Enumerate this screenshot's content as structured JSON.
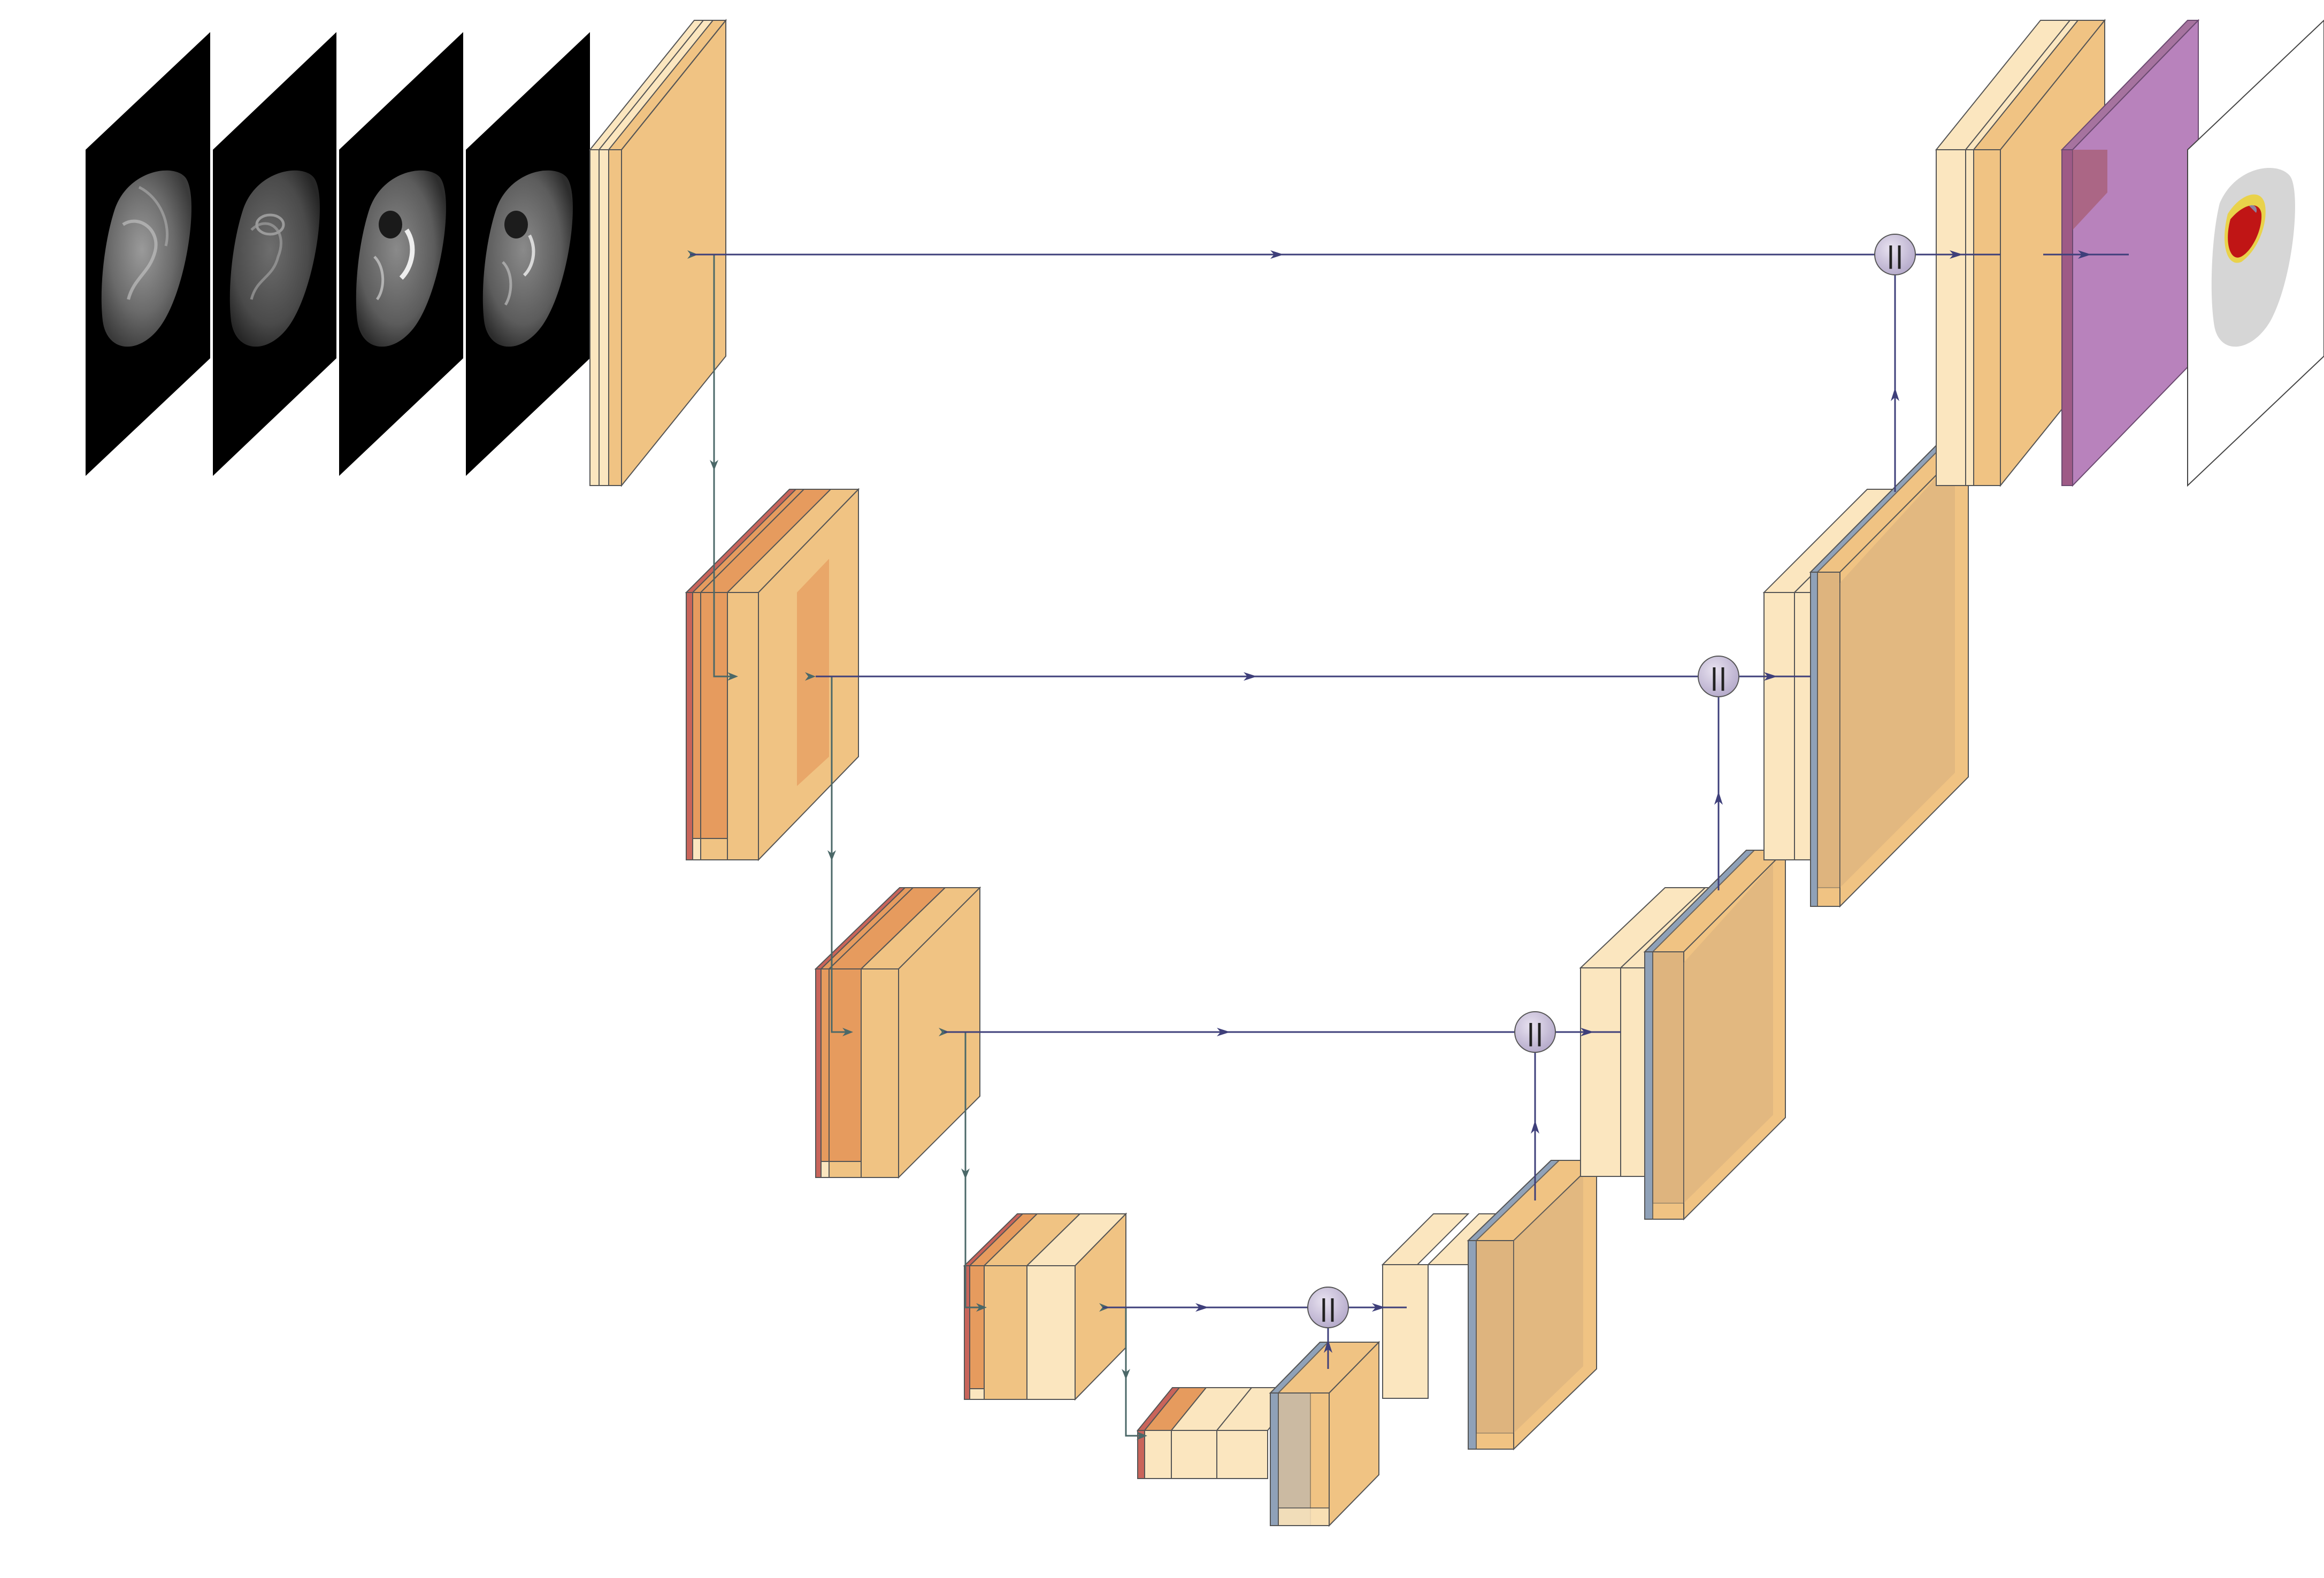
{
  "diagram": {
    "kind": "U-Net encoder-decoder architecture for brain tumor segmentation",
    "input_modalities": [
      "mri-slice-1",
      "mri-slice-2",
      "mri-slice-3",
      "mri-slice-4"
    ],
    "concat_symbol": "||",
    "colors": {
      "background": "#ffffff",
      "block_light": "#FBE6BF",
      "block_main": "#F0C383",
      "block_dark": "#E69B5E",
      "pool_red": "#C9645A",
      "upconv_blue": "#7F9CC2",
      "softmax_purple": "#B882BC",
      "skip_line": "#3E3F7A",
      "down_line": "#4B6868",
      "concat_node": "#CBC3DC",
      "tumor_red": "#C01515",
      "tumor_yellow": "#E9D24A",
      "brain_gray": "#D6D6D6"
    }
  }
}
